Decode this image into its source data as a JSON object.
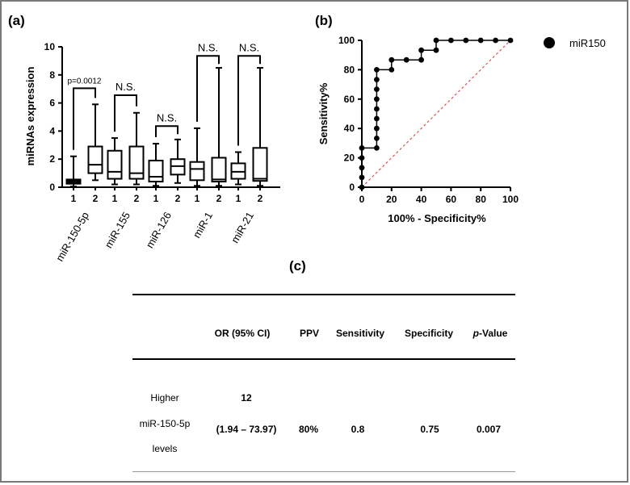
{
  "panels": {
    "a": "(a)",
    "b": "(b)",
    "c": "(c)"
  },
  "chart_data": [
    {
      "type": "box",
      "ylabel": "miRNAs expression",
      "ylim": [
        0,
        10
      ],
      "yticks": [
        "0",
        "2",
        "4",
        "6",
        "8",
        "10"
      ],
      "groups": [
        "miR-150-5p",
        "miR-155",
        "miR-126",
        "miR-1",
        "miR-21"
      ],
      "sublabels": [
        "1",
        "2"
      ],
      "boxes": [
        {
          "group": "miR-150-5p",
          "sub": "1",
          "min": 0.05,
          "q1": 0.25,
          "median": 0.45,
          "q3": 0.55,
          "max": 2.2
        },
        {
          "group": "miR-150-5p",
          "sub": "2",
          "min": 0.5,
          "q1": 1.0,
          "median": 1.6,
          "q3": 2.9,
          "max": 5.9
        },
        {
          "group": "miR-155",
          "sub": "1",
          "min": 0.2,
          "q1": 0.6,
          "median": 1.1,
          "q3": 2.6,
          "max": 3.5
        },
        {
          "group": "miR-155",
          "sub": "2",
          "min": 0.2,
          "q1": 0.6,
          "median": 1.0,
          "q3": 2.9,
          "max": 5.3
        },
        {
          "group": "miR-126",
          "sub": "1",
          "min": 0.1,
          "q1": 0.4,
          "median": 0.75,
          "q3": 1.9,
          "max": 3.1
        },
        {
          "group": "miR-126",
          "sub": "2",
          "min": 0.3,
          "q1": 0.9,
          "median": 1.5,
          "q3": 2.0,
          "max": 3.4
        },
        {
          "group": "miR-1",
          "sub": "1",
          "min": 0.1,
          "q1": 0.5,
          "median": 1.3,
          "q3": 1.8,
          "max": 4.2
        },
        {
          "group": "miR-1",
          "sub": "2",
          "min": 0.1,
          "q1": 0.4,
          "median": 0.55,
          "q3": 2.1,
          "max": 8.5
        },
        {
          "group": "miR-21",
          "sub": "1",
          "min": 0.2,
          "q1": 0.6,
          "median": 1.1,
          "q3": 1.7,
          "max": 2.5
        },
        {
          "group": "miR-21",
          "sub": "2",
          "min": 0.1,
          "q1": 0.45,
          "median": 0.6,
          "q3": 2.8,
          "max": 8.5
        }
      ],
      "annotations": [
        {
          "group": "miR-150-5p",
          "text": "p=0.0012",
          "level": 7.05
        },
        {
          "group": "miR-155",
          "text": "N.S.",
          "level": 6.55
        },
        {
          "group": "miR-126",
          "text": "N.S.",
          "level": 4.35
        },
        {
          "group": "miR-1",
          "text": "N.S.",
          "level": 9.35
        },
        {
          "group": "miR-21",
          "text": "N.S.",
          "level": 9.35
        }
      ]
    },
    {
      "type": "line",
      "xlabel": "100% - Specificity%",
      "ylabel": "Sensitivity%",
      "xlim": [
        0,
        100
      ],
      "ylim": [
        0,
        100
      ],
      "xticks": [
        "0",
        "20",
        "40",
        "60",
        "80",
        "100"
      ],
      "yticks": [
        "0",
        "20",
        "40",
        "60",
        "80",
        "100"
      ],
      "legend_position": "top-right",
      "series": [
        {
          "name": "miR150",
          "color": "#000000",
          "points": [
            [
              0,
              0
            ],
            [
              0,
              6.7
            ],
            [
              0,
              13.3
            ],
            [
              0,
              20
            ],
            [
              0,
              26.7
            ],
            [
              10,
              26.7
            ],
            [
              10,
              33.3
            ],
            [
              10,
              40
            ],
            [
              10,
              46.7
            ],
            [
              10,
              53.3
            ],
            [
              10,
              60
            ],
            [
              10,
              66.7
            ],
            [
              10,
              73.3
            ],
            [
              10,
              80
            ],
            [
              20,
              80
            ],
            [
              20,
              86.7
            ],
            [
              30,
              86.7
            ],
            [
              40,
              86.7
            ],
            [
              40,
              93.3
            ],
            [
              50,
              93.3
            ],
            [
              50,
              100
            ],
            [
              60,
              100
            ],
            [
              70,
              100
            ],
            [
              80,
              100
            ],
            [
              90,
              100
            ],
            [
              100,
              100
            ]
          ]
        }
      ],
      "reference_line": {
        "from": [
          0,
          0
        ],
        "to": [
          100,
          100
        ],
        "color": "#e05050"
      }
    }
  ],
  "table": {
    "headers": {
      "or": "OR (95% CI)",
      "ppv": "PPV",
      "sens": "Sensitivity",
      "spec": "Specificity",
      "pval_italic": "p",
      "pval_rest": "-Value"
    },
    "row": {
      "label_line1": "Higher",
      "label_line2": "miR-150-5p",
      "label_line3": "levels",
      "or_value": "12",
      "or_ci": "(1.94 – 73.97)",
      "ppv": "80%",
      "sens": "0.8",
      "spec": "0.75",
      "pval": "0.007"
    }
  }
}
